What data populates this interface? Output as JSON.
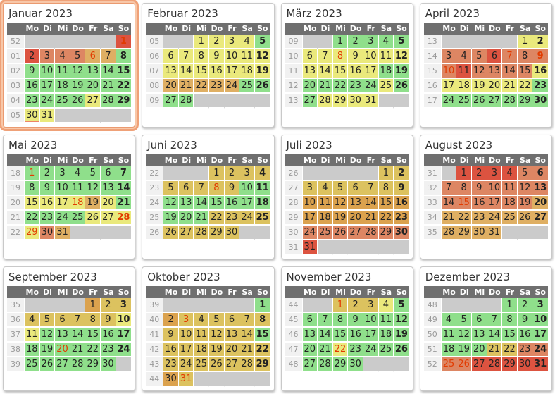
{
  "calendar": {
    "year": "2023",
    "weekdays": [
      "Mo",
      "Di",
      "Mi",
      "Do",
      "Fr",
      "Sa",
      "So"
    ],
    "palette": {
      "g": "#8fdf8b",
      "y": "#eae97c",
      "d": "#dcc25f",
      "a": "#dfaf63",
      "o": "#dba24e",
      "s": "#dd8663",
      "r": "#dc5340",
      "empty": "#cbcbcb",
      "holiday_text": "#e23b00",
      "header_bg": "#6f6f6f",
      "week_col_bg": "#f1f1f1",
      "week_col_text": "#9a9a9a",
      "highlight_border": "#efa178",
      "today_border": "#ee8566"
    },
    "months": [
      {
        "title": "Januar 2023",
        "highlight": true,
        "weeks": [
          {
            "n": "52",
            "d": [
              "",
              "",
              "",
              "",
              "",
              "",
              "1|r|h"
            ]
          },
          {
            "n": "01",
            "d": [
              "2|r",
              "3|s",
              "4|s",
              "5|s",
              "6|a|h",
              "7|a",
              "8|g"
            ]
          },
          {
            "n": "02",
            "d": [
              "9|g",
              "10|g",
              "11|g",
              "12|g",
              "13|g",
              "14|g",
              "15|g"
            ]
          },
          {
            "n": "03",
            "d": [
              "16|g",
              "17|g",
              "18|g",
              "19|g",
              "20|g",
              "21|g",
              "22|g"
            ]
          },
          {
            "n": "04",
            "d": [
              "23|g",
              "24|g",
              "25|g",
              "26|g",
              "27|y",
              "28|g",
              "29|g"
            ]
          },
          {
            "n": "05",
            "d": [
              "30|y|t",
              "31|y",
              "",
              "",
              "",
              "",
              ""
            ]
          }
        ]
      },
      {
        "title": "Februar 2023",
        "highlight": false,
        "weeks": [
          {
            "n": "05",
            "d": [
              "",
              "",
              "1|y",
              "2|y",
              "3|y",
              "4|y",
              "5|g"
            ]
          },
          {
            "n": "06",
            "d": [
              "6|y",
              "7|y",
              "8|y",
              "9|y",
              "10|y",
              "11|y",
              "12|y"
            ]
          },
          {
            "n": "07",
            "d": [
              "13|y",
              "14|y",
              "15|y",
              "16|y",
              "17|y",
              "18|y",
              "19|y"
            ]
          },
          {
            "n": "08",
            "d": [
              "20|a",
              "21|a",
              "22|a",
              "23|a",
              "24|a",
              "25|g",
              "26|g"
            ]
          },
          {
            "n": "09",
            "d": [
              "27|g",
              "28|g",
              "",
              "",
              "",
              "",
              ""
            ]
          }
        ]
      },
      {
        "title": "März 2023",
        "highlight": false,
        "weeks": [
          {
            "n": "09",
            "d": [
              "",
              "",
              "1|g",
              "2|g",
              "3|g",
              "4|g",
              "5|g"
            ]
          },
          {
            "n": "10",
            "d": [
              "6|y",
              "7|y",
              "8|y|h",
              "9|y",
              "10|y",
              "11|y",
              "12|y"
            ]
          },
          {
            "n": "11",
            "d": [
              "13|y",
              "14|y",
              "15|y",
              "16|y",
              "17|y",
              "18|g",
              "19|g"
            ]
          },
          {
            "n": "12",
            "d": [
              "20|g",
              "21|g",
              "22|g",
              "23|g",
              "24|g",
              "25|y",
              "26|g"
            ]
          },
          {
            "n": "13",
            "d": [
              "27|g",
              "28|y",
              "29|y",
              "30|y",
              "31|y",
              "",
              ""
            ]
          }
        ]
      },
      {
        "title": "April 2023",
        "highlight": false,
        "weeks": [
          {
            "n": "13",
            "d": [
              "",
              "",
              "",
              "",
              "",
              "1|y",
              "2|y"
            ]
          },
          {
            "n": "14",
            "d": [
              "3|s",
              "4|s",
              "5|s",
              "6|r",
              "7|s|h",
              "8|s",
              "9|s|h"
            ]
          },
          {
            "n": "15",
            "d": [
              "10|s|h",
              "11|r",
              "12|s",
              "13|s",
              "14|s",
              "15|s",
              "16|y"
            ]
          },
          {
            "n": "16",
            "d": [
              "17|y",
              "18|y",
              "19|y",
              "20|y",
              "21|y",
              "22|y",
              "23|g"
            ]
          },
          {
            "n": "17",
            "d": [
              "24|g",
              "25|g",
              "26|g",
              "27|g",
              "28|g",
              "29|g",
              "30|g"
            ]
          }
        ]
      },
      {
        "title": "Mai 2023",
        "highlight": false,
        "weeks": [
          {
            "n": "18",
            "d": [
              "1|g|h",
              "2|g",
              "3|g",
              "4|g",
              "5|g",
              "6|g",
              "7|g"
            ]
          },
          {
            "n": "19",
            "d": [
              "8|g",
              "9|g",
              "10|g",
              "11|g",
              "12|g",
              "13|g",
              "14|g"
            ]
          },
          {
            "n": "20",
            "d": [
              "15|y",
              "16|y",
              "17|y",
              "18|y|h",
              "19|a",
              "20|y",
              "21|g"
            ]
          },
          {
            "n": "21",
            "d": [
              "22|g",
              "23|g",
              "24|g",
              "25|g",
              "26|y",
              "27|y",
              "28|y|h"
            ]
          },
          {
            "n": "22",
            "d": [
              "29|y|h",
              "30|s",
              "31|a",
              "",
              "",
              "",
              ""
            ]
          }
        ]
      },
      {
        "title": "Juni 2023",
        "highlight": false,
        "weeks": [
          {
            "n": "22",
            "d": [
              "",
              "",
              "",
              "1|d",
              "2|d",
              "3|d",
              "4|d"
            ]
          },
          {
            "n": "23",
            "d": [
              "5|d",
              "6|d",
              "7|d",
              "8|d|h",
              "9|d",
              "10|g",
              "11|g"
            ]
          },
          {
            "n": "24",
            "d": [
              "12|g",
              "13|g",
              "14|g",
              "15|g",
              "16|g",
              "17|g",
              "18|g"
            ]
          },
          {
            "n": "25",
            "d": [
              "19|g",
              "20|g",
              "21|g",
              "22|d",
              "23|d",
              "24|d",
              "25|d"
            ]
          },
          {
            "n": "26",
            "d": [
              "26|d",
              "27|d",
              "28|d",
              "29|d",
              "30|d",
              "",
              ""
            ]
          }
        ]
      },
      {
        "title": "Juli 2023",
        "highlight": false,
        "weeks": [
          {
            "n": "26",
            "d": [
              "",
              "",
              "",
              "",
              "",
              "1|d",
              "2|d"
            ]
          },
          {
            "n": "27",
            "d": [
              "3|d",
              "4|d",
              "5|d",
              "6|d",
              "7|d",
              "8|d",
              "9|d"
            ]
          },
          {
            "n": "28",
            "d": [
              "10|o",
              "11|o",
              "12|o",
              "13|o",
              "14|o",
              "15|o",
              "16|o"
            ]
          },
          {
            "n": "29",
            "d": [
              "17|o",
              "18|o",
              "19|o",
              "20|o",
              "21|o",
              "22|o",
              "23|o"
            ]
          },
          {
            "n": "30",
            "d": [
              "24|s",
              "25|s",
              "26|s",
              "27|s",
              "28|s",
              "29|s",
              "30|s"
            ]
          },
          {
            "n": "31",
            "d": [
              "31|r",
              "",
              "",
              "",
              "",
              "",
              ""
            ]
          }
        ]
      },
      {
        "title": "August 2023",
        "highlight": false,
        "weeks": [
          {
            "n": "31",
            "d": [
              "",
              "1|r",
              "2|r",
              "3|r",
              "4|r",
              "5|s",
              "6|s"
            ]
          },
          {
            "n": "32",
            "d": [
              "7|s",
              "8|s",
              "9|s",
              "10|s",
              "11|s",
              "12|s",
              "13|s"
            ]
          },
          {
            "n": "33",
            "d": [
              "14|s",
              "15|s|h",
              "16|s",
              "17|s",
              "18|s",
              "19|s",
              "20|a"
            ]
          },
          {
            "n": "34",
            "d": [
              "21|a",
              "22|a",
              "23|a",
              "24|a",
              "25|a",
              "26|a",
              "27|a"
            ]
          },
          {
            "n": "35",
            "d": [
              "28|a",
              "29|a",
              "30|a",
              "31|a",
              "",
              "",
              ""
            ]
          }
        ]
      },
      {
        "title": "September 2023",
        "highlight": false,
        "weeks": [
          {
            "n": "35",
            "d": [
              "",
              "",
              "",
              "",
              "1|o",
              "2|d",
              "3|d"
            ]
          },
          {
            "n": "36",
            "d": [
              "4|d",
              "5|d",
              "6|d",
              "7|d",
              "8|d",
              "9|d",
              "10|y"
            ]
          },
          {
            "n": "37",
            "d": [
              "11|y",
              "12|g",
              "13|g",
              "14|g",
              "15|g",
              "16|g",
              "17|g"
            ]
          },
          {
            "n": "38",
            "d": [
              "18|g",
              "19|g",
              "20|g|h",
              "21|g",
              "22|g",
              "23|g",
              "24|g"
            ]
          },
          {
            "n": "39",
            "d": [
              "25|g",
              "26|g",
              "27|g",
              "28|g",
              "29|g",
              "30|g",
              ""
            ]
          }
        ]
      },
      {
        "title": "Oktober 2023",
        "highlight": false,
        "weeks": [
          {
            "n": "39",
            "d": [
              "",
              "",
              "",
              "",
              "",
              "",
              "1|g"
            ]
          },
          {
            "n": "40",
            "d": [
              "2|o",
              "3|d|h",
              "4|d",
              "5|d",
              "6|d",
              "7|d",
              "8|d"
            ]
          },
          {
            "n": "41",
            "d": [
              "9|d",
              "10|d",
              "11|d",
              "12|d",
              "13|d",
              "14|d",
              "15|g"
            ]
          },
          {
            "n": "42",
            "d": [
              "16|d",
              "17|d",
              "18|d",
              "19|d",
              "20|d",
              "21|d",
              "22|d"
            ]
          },
          {
            "n": "43",
            "d": [
              "23|d",
              "24|d",
              "25|d",
              "26|d",
              "27|d",
              "28|d",
              "29|d"
            ]
          },
          {
            "n": "44",
            "d": [
              "30|o",
              "31|d|h",
              "",
              "",
              "",
              "",
              ""
            ]
          }
        ]
      },
      {
        "title": "November 2023",
        "highlight": false,
        "weeks": [
          {
            "n": "44",
            "d": [
              "",
              "",
              "1|d|h",
              "2|d",
              "3|d",
              "4|y",
              "5|g"
            ]
          },
          {
            "n": "45",
            "d": [
              "6|g",
              "7|g",
              "8|g",
              "9|g",
              "10|g",
              "11|g",
              "12|g"
            ]
          },
          {
            "n": "46",
            "d": [
              "13|g",
              "14|g",
              "15|g",
              "16|g",
              "17|g",
              "18|g",
              "19|g"
            ]
          },
          {
            "n": "47",
            "d": [
              "20|g",
              "21|g",
              "22|y|h",
              "23|g",
              "24|g",
              "25|g",
              "26|g"
            ]
          },
          {
            "n": "48",
            "d": [
              "27|g",
              "28|g",
              "29|g",
              "30|g",
              "",
              "",
              ""
            ]
          }
        ]
      },
      {
        "title": "Dezember 2023",
        "highlight": false,
        "weeks": [
          {
            "n": "48",
            "d": [
              "",
              "",
              "",
              "",
              "1|g",
              "2|g",
              "3|g"
            ]
          },
          {
            "n": "49",
            "d": [
              "4|g",
              "5|g",
              "6|g",
              "7|g",
              "8|g",
              "9|g",
              "10|g"
            ]
          },
          {
            "n": "50",
            "d": [
              "11|g",
              "12|g",
              "13|g",
              "14|g",
              "15|g",
              "16|g",
              "17|g"
            ]
          },
          {
            "n": "51",
            "d": [
              "18|g",
              "19|g",
              "20|g",
              "21|d",
              "22|d",
              "23|s",
              "24|s"
            ]
          },
          {
            "n": "52",
            "d": [
              "25|s|h",
              "26|s|h",
              "27|r",
              "28|r",
              "29|r",
              "30|r",
              "31|r"
            ]
          }
        ]
      }
    ]
  }
}
